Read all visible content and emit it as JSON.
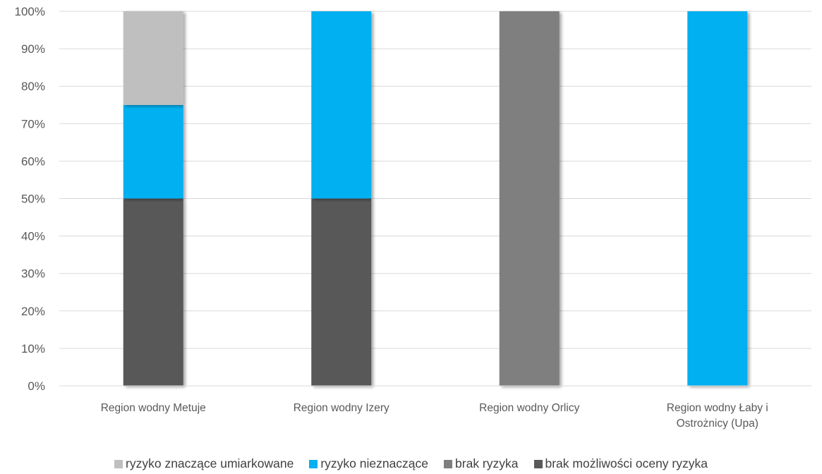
{
  "chart_data": {
    "type": "bar",
    "stacked": true,
    "title": "",
    "xlabel": "",
    "ylabel": "",
    "ylim": [
      0,
      100
    ],
    "yticks": [
      "0%",
      "10%",
      "20%",
      "30%",
      "40%",
      "50%",
      "60%",
      "70%",
      "80%",
      "90%",
      "100%"
    ],
    "categories": [
      [
        "Region wodny Metuje"
      ],
      [
        "Region wodny Izery"
      ],
      [
        "Region wodny Orlicy"
      ],
      [
        "Region wodny Łaby i",
        "Ostrożnicy (Upa)"
      ]
    ],
    "series": [
      {
        "name": "brak możliwości oceny ryzyka",
        "color": "#595959",
        "values": [
          50,
          50,
          0,
          0
        ]
      },
      {
        "name": "brak ryzyka",
        "color": "#7f7f7f",
        "values": [
          0,
          0,
          100,
          0
        ]
      },
      {
        "name": "ryzyko nieznaczące",
        "color": "#00b0f0",
        "values": [
          25,
          50,
          0,
          100
        ]
      },
      {
        "name": "ryzyko znaczące umiarkowane",
        "color": "#bfbfbf",
        "values": [
          25,
          0,
          0,
          0
        ]
      }
    ],
    "legend": {
      "position": "bottom",
      "order": [
        "ryzyko znaczące umiarkowane",
        "ryzyko nieznaczące",
        "brak ryzyka",
        "brak możliwości oceny ryzyka"
      ]
    },
    "grid": true
  }
}
